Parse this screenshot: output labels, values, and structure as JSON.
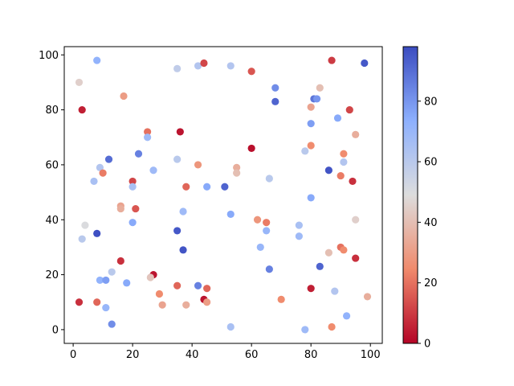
{
  "chart_data": {
    "type": "scatter",
    "title": "",
    "xlabel": "",
    "ylabel": "",
    "xlim": [
      -3,
      104
    ],
    "ylim": [
      -5,
      103
    ],
    "xticks": [
      0,
      20,
      40,
      60,
      80,
      100
    ],
    "yticks": [
      0,
      20,
      40,
      60,
      80,
      100
    ],
    "grid": false,
    "legend": "none",
    "colormap": "coolwarm",
    "colorbar": {
      "range": [
        0,
        98
      ],
      "ticks": [
        0,
        20,
        40,
        60,
        80
      ]
    },
    "colors": {
      "low": "#b40426",
      "mid": "#dddddd",
      "high": "#3b4cc0"
    },
    "points": [
      {
        "x": 2,
        "y": 90,
        "c": 45
      },
      {
        "x": 3,
        "y": 80,
        "c": 5
      },
      {
        "x": 8,
        "y": 98,
        "c": 72
      },
      {
        "x": 17,
        "y": 85,
        "c": 30
      },
      {
        "x": 35,
        "y": 95,
        "c": 58
      },
      {
        "x": 42,
        "y": 96,
        "c": 62
      },
      {
        "x": 44,
        "y": 97,
        "c": 12
      },
      {
        "x": 53,
        "y": 96,
        "c": 62
      },
      {
        "x": 60,
        "y": 94,
        "c": 15
      },
      {
        "x": 68,
        "y": 88,
        "c": 82
      },
      {
        "x": 68,
        "y": 83,
        "c": 92
      },
      {
        "x": 81,
        "y": 84,
        "c": 88
      },
      {
        "x": 82,
        "y": 84,
        "c": 80
      },
      {
        "x": 83,
        "y": 88,
        "c": 40
      },
      {
        "x": 80,
        "y": 81,
        "c": 32
      },
      {
        "x": 87,
        "y": 98,
        "c": 10
      },
      {
        "x": 98,
        "y": 97,
        "c": 95
      },
      {
        "x": 93,
        "y": 80,
        "c": 12
      },
      {
        "x": 89,
        "y": 77,
        "c": 75
      },
      {
        "x": 80,
        "y": 75,
        "c": 78
      },
      {
        "x": 95,
        "y": 71,
        "c": 35
      },
      {
        "x": 25,
        "y": 72,
        "c": 20
      },
      {
        "x": 36,
        "y": 72,
        "c": 3
      },
      {
        "x": 25,
        "y": 70,
        "c": 68
      },
      {
        "x": 60,
        "y": 66,
        "c": 2
      },
      {
        "x": 80,
        "y": 67,
        "c": 25
      },
      {
        "x": 78,
        "y": 65,
        "c": 60
      },
      {
        "x": 91,
        "y": 64,
        "c": 25
      },
      {
        "x": 91,
        "y": 61,
        "c": 62
      },
      {
        "x": 12,
        "y": 62,
        "c": 90
      },
      {
        "x": 22,
        "y": 64,
        "c": 85
      },
      {
        "x": 9,
        "y": 59,
        "c": 62
      },
      {
        "x": 10,
        "y": 57,
        "c": 22
      },
      {
        "x": 7,
        "y": 54,
        "c": 65
      },
      {
        "x": 20,
        "y": 54,
        "c": 12
      },
      {
        "x": 20,
        "y": 52,
        "c": 65
      },
      {
        "x": 27,
        "y": 58,
        "c": 68
      },
      {
        "x": 35,
        "y": 62,
        "c": 60
      },
      {
        "x": 42,
        "y": 60,
        "c": 28
      },
      {
        "x": 55,
        "y": 59,
        "c": 35
      },
      {
        "x": 55,
        "y": 57,
        "c": 40
      },
      {
        "x": 66,
        "y": 55,
        "c": 60
      },
      {
        "x": 86,
        "y": 58,
        "c": 96
      },
      {
        "x": 90,
        "y": 56,
        "c": 22
      },
      {
        "x": 94,
        "y": 54,
        "c": 8
      },
      {
        "x": 38,
        "y": 52,
        "c": 18
      },
      {
        "x": 45,
        "y": 52,
        "c": 75
      },
      {
        "x": 51,
        "y": 52,
        "c": 92
      },
      {
        "x": 80,
        "y": 48,
        "c": 75
      },
      {
        "x": 16,
        "y": 45,
        "c": 32
      },
      {
        "x": 16,
        "y": 44,
        "c": 35
      },
      {
        "x": 21,
        "y": 44,
        "c": 15
      },
      {
        "x": 37,
        "y": 43,
        "c": 68
      },
      {
        "x": 53,
        "y": 42,
        "c": 75
      },
      {
        "x": 62,
        "y": 40,
        "c": 28
      },
      {
        "x": 65,
        "y": 39,
        "c": 22
      },
      {
        "x": 95,
        "y": 40,
        "c": 45
      },
      {
        "x": 4,
        "y": 38,
        "c": 50
      },
      {
        "x": 20,
        "y": 39,
        "c": 75
      },
      {
        "x": 76,
        "y": 38,
        "c": 65
      },
      {
        "x": 65,
        "y": 36,
        "c": 70
      },
      {
        "x": 35,
        "y": 36,
        "c": 95
      },
      {
        "x": 76,
        "y": 34,
        "c": 68
      },
      {
        "x": 3,
        "y": 33,
        "c": 60
      },
      {
        "x": 8,
        "y": 35,
        "c": 97
      },
      {
        "x": 63,
        "y": 30,
        "c": 70
      },
      {
        "x": 37,
        "y": 29,
        "c": 96
      },
      {
        "x": 90,
        "y": 30,
        "c": 20
      },
      {
        "x": 91,
        "y": 29,
        "c": 25
      },
      {
        "x": 86,
        "y": 28,
        "c": 40
      },
      {
        "x": 95,
        "y": 26,
        "c": 8
      },
      {
        "x": 16,
        "y": 25,
        "c": 8
      },
      {
        "x": 66,
        "y": 22,
        "c": 85
      },
      {
        "x": 83,
        "y": 23,
        "c": 92
      },
      {
        "x": 13,
        "y": 21,
        "c": 60
      },
      {
        "x": 27,
        "y": 20,
        "c": 3
      },
      {
        "x": 26,
        "y": 19,
        "c": 42
      },
      {
        "x": 9,
        "y": 18,
        "c": 72
      },
      {
        "x": 11,
        "y": 18,
        "c": 78
      },
      {
        "x": 18,
        "y": 17,
        "c": 75
      },
      {
        "x": 35,
        "y": 16,
        "c": 18
      },
      {
        "x": 42,
        "y": 16,
        "c": 85
      },
      {
        "x": 45,
        "y": 15,
        "c": 18
      },
      {
        "x": 80,
        "y": 15,
        "c": 5
      },
      {
        "x": 88,
        "y": 14,
        "c": 62
      },
      {
        "x": 29,
        "y": 13,
        "c": 25
      },
      {
        "x": 44,
        "y": 11,
        "c": 3
      },
      {
        "x": 45,
        "y": 10,
        "c": 30
      },
      {
        "x": 70,
        "y": 11,
        "c": 25
      },
      {
        "x": 2,
        "y": 10,
        "c": 8
      },
      {
        "x": 8,
        "y": 10,
        "c": 18
      },
      {
        "x": 30,
        "y": 9,
        "c": 32
      },
      {
        "x": 38,
        "y": 9,
        "c": 35
      },
      {
        "x": 99,
        "y": 12,
        "c": 35
      },
      {
        "x": 11,
        "y": 8,
        "c": 70
      },
      {
        "x": 92,
        "y": 5,
        "c": 72
      },
      {
        "x": 13,
        "y": 2,
        "c": 82
      },
      {
        "x": 53,
        "y": 1,
        "c": 65
      },
      {
        "x": 78,
        "y": 0,
        "c": 68
      },
      {
        "x": 87,
        "y": 1,
        "c": 25
      }
    ]
  }
}
